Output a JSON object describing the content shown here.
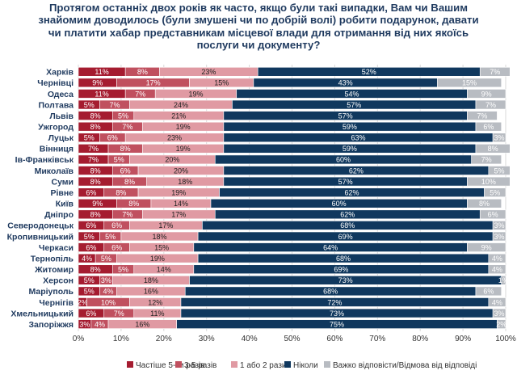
{
  "chart_data": {
    "type": "bar",
    "orientation": "horizontal",
    "stacked": true,
    "title": "Протягом останніх двох років як часто, якщо були такі випадки, Вам чи Вашим знайомим доводилось (були змушені чи по добрій волі) робити подарунок, давати чи платити хабар представникам місцевої влади для отримання від них якоїсь послуги чи документу?",
    "categories": [
      "Харків",
      "Чернівці",
      "Одеса",
      "Полтава",
      "Львів",
      "Ужгород",
      "Луцьк",
      "Вінниця",
      "Ів-Франківськ",
      "Миколаїв",
      "Суми",
      "Рівне",
      "Київ",
      "Дніпро",
      "Северодонецьк",
      "Кропивницький",
      "Черкаси",
      "Тернопіль",
      "Житомир",
      "Херсон",
      "Маріуполь",
      "Чернігів",
      "Хмельницький",
      "Запоріжжя"
    ],
    "series": [
      {
        "name": "Частіше 5-ти разів",
        "color": "#a51c30",
        "values": [
          11,
          9,
          11,
          5,
          8,
          8,
          5,
          7,
          7,
          8,
          8,
          6,
          9,
          8,
          6,
          5,
          6,
          4,
          8,
          5,
          5,
          2,
          6,
          3
        ],
        "labels": [
          "11%",
          "9%",
          "11%",
          "5%",
          "8%",
          "8%",
          "5%",
          "7%",
          "7%",
          "8%",
          "8%",
          "6%",
          "9%",
          "8%",
          "6%",
          "5%",
          "6%",
          "4%",
          "8%",
          "5%",
          "5%",
          "2%",
          "6%",
          "3%"
        ]
      },
      {
        "name": "3-5 разів",
        "color": "#c0505f",
        "values": [
          8,
          17,
          7,
          7,
          5,
          7,
          6,
          8,
          5,
          6,
          8,
          8,
          8,
          7,
          6,
          5,
          6,
          5,
          5,
          3,
          4,
          10,
          7,
          4
        ],
        "labels": [
          "8%",
          "17%",
          "7%",
          "7%",
          "5%",
          "7%",
          "6%",
          "8%",
          "5%",
          "6%",
          "8%",
          "8%",
          "8%",
          "7%",
          "6%",
          "5%",
          "6%",
          "5%",
          "5%",
          "3%",
          "4%",
          "10%",
          "7%",
          "4%"
        ]
      },
      {
        "name": "1 або 2 рази",
        "color": "#e09aa3",
        "values": [
          23,
          15,
          19,
          24,
          21,
          19,
          23,
          19,
          20,
          20,
          18,
          19,
          14,
          17,
          17,
          18,
          15,
          19,
          14,
          18,
          16,
          12,
          11,
          16
        ],
        "labels": [
          "23%",
          "15%",
          "19%",
          "24%",
          "21%",
          "19%",
          "23%",
          "19%",
          "20%",
          "20%",
          "18%",
          "19%",
          "14%",
          "17%",
          "17%",
          "18%",
          "15%",
          "19%",
          "14%",
          "18%",
          "16%",
          "12%",
          "11%",
          "16%"
        ]
      },
      {
        "name": "Ніколи",
        "color": "#10385e",
        "values": [
          52,
          43,
          54,
          57,
          57,
          59,
          63,
          59,
          60,
          62,
          57,
          62,
          60,
          62,
          68,
          69,
          64,
          68,
          69,
          73,
          68,
          72,
          73,
          75
        ],
        "labels": [
          "52%",
          "43%",
          "54%",
          "57%",
          "57%",
          "59%",
          "63%",
          "59%",
          "60%",
          "62%",
          "57%",
          "62%",
          "60%",
          "62%",
          "68%",
          "69%",
          "64%",
          "68%",
          "69%",
          "73%",
          "68%",
          "72%",
          "73%",
          "75%"
        ]
      },
      {
        "name": "Важко відповісти/Відмова від відповіді",
        "color": "#b8bcc2",
        "values": [
          7,
          15,
          9,
          7,
          7,
          6,
          3,
          8,
          7,
          5,
          10,
          5,
          8,
          6,
          3,
          3,
          9,
          4,
          4,
          1,
          6,
          4,
          3,
          2
        ],
        "labels": [
          "7%",
          "15%",
          "9%",
          "7%",
          "7%",
          "6%",
          "3%",
          "8%",
          "7%",
          "5%",
          "10%",
          "5%",
          "8%",
          "6%",
          "3%",
          "3%",
          "9%",
          "4%",
          "4%",
          "1%",
          "6%",
          "4%",
          "3%",
          "2%"
        ]
      }
    ],
    "xlim": [
      0,
      100
    ],
    "xticks": [
      "0%",
      "10%",
      "20%",
      "30%",
      "40%",
      "50%",
      "60%",
      "70%",
      "80%",
      "90%",
      "100%"
    ],
    "grid": true,
    "legend_position": "bottom"
  }
}
